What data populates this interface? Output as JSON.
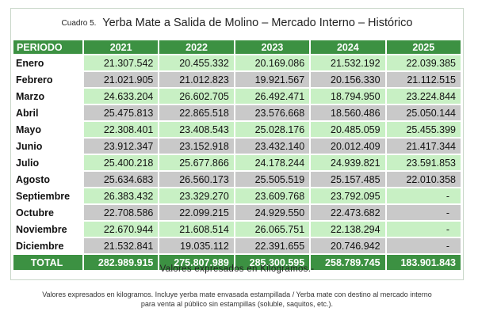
{
  "header": {
    "label": "Cuadro 5.",
    "title": "Yerba Mate a Salida de Molino  – Mercado Interno – Histórico"
  },
  "table": {
    "columns": [
      "PERIODO",
      "2021",
      "2022",
      "2023",
      "2024",
      "2025"
    ],
    "rows": [
      {
        "month": "Enero",
        "values": [
          "21.307.542",
          "20.455.332",
          "20.169.086",
          "21.532.192",
          "22.039.385"
        ]
      },
      {
        "month": "Febrero",
        "values": [
          "21.021.905",
          "21.012.823",
          "19.921.567",
          "20.156.330",
          "21.112.515"
        ]
      },
      {
        "month": "Marzo",
        "values": [
          "24.633.204",
          "26.602.705",
          "26.492.471",
          "18.794.950",
          "23.224.844"
        ]
      },
      {
        "month": "Abril",
        "values": [
          "25.475.813",
          "22.865.518",
          "23.576.668",
          "18.560.486",
          "25.050.144"
        ]
      },
      {
        "month": "Mayo",
        "values": [
          "22.308.401",
          "23.408.543",
          "25.028.176",
          "20.485.059",
          "25.455.399"
        ]
      },
      {
        "month": "Junio",
        "values": [
          "23.912.347",
          "23.152.918",
          "23.432.140",
          "20.012.409",
          "21.417.344"
        ]
      },
      {
        "month": "Julio",
        "values": [
          "25.400.218",
          "25.677.866",
          "24.178.244",
          "24.939.821",
          "23.591.853"
        ]
      },
      {
        "month": "Agosto",
        "values": [
          "25.634.683",
          "26.560.173",
          "25.505.519",
          "25.157.485",
          "22.010.358"
        ]
      },
      {
        "month": "Septiembre",
        "values": [
          "26.383.432",
          "23.329.270",
          "23.609.768",
          "23.792.095",
          "-"
        ]
      },
      {
        "month": "Octubre",
        "values": [
          "22.708.586",
          "22.099.215",
          "24.929.550",
          "22.473.682",
          "-"
        ]
      },
      {
        "month": "Noviembre",
        "values": [
          "22.670.944",
          "21.608.514",
          "26.065.751",
          "22.138.294",
          "-"
        ]
      },
      {
        "month": "Diciembre",
        "values": [
          "21.532.841",
          "19.035.112",
          "22.391.655",
          "20.746.942",
          "-"
        ]
      }
    ],
    "total": {
      "label": "TOTAL",
      "values": [
        "282.989.915",
        "275.807.989",
        "285.300.595",
        "258.789.745",
        "183.901.843"
      ]
    }
  },
  "unit_note": "Valores expresados en Kilogramos.-",
  "footnote_line1": "Valores expresados en kilogramos. Incluye yerba mate envasada estampillada / Yerba mate con destino al mercado interno",
  "footnote_line2": "para venta al público sin estampillas (soluble, saquitos, etc.).",
  "colors": {
    "header_green": "#3c9142",
    "row_green": "#c8f0c4",
    "row_gray": "#c9c9c9"
  }
}
